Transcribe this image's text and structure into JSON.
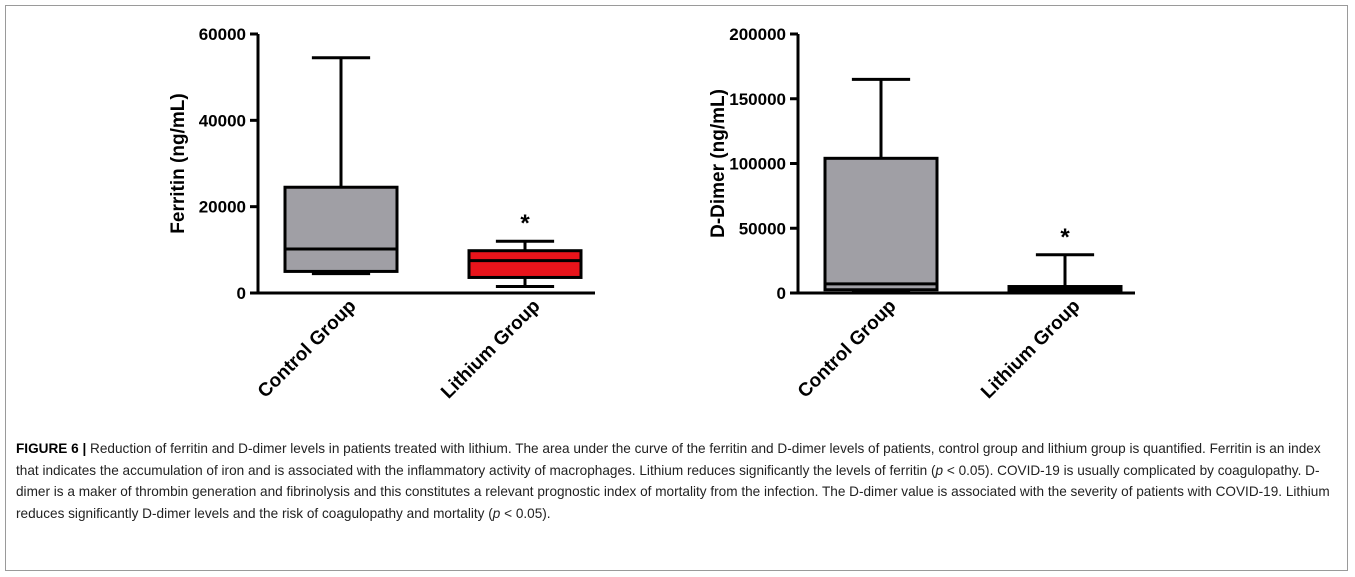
{
  "chart_data": [
    {
      "type": "box",
      "ylabel": "Ferritin (ng/mL)",
      "ylim": [
        0,
        60000
      ],
      "yticks": [
        0,
        20000,
        40000,
        60000
      ],
      "ytick_labels": [
        "0",
        "20000",
        "40000",
        "60000"
      ],
      "categories": [
        "Control Group",
        "Lithium Group"
      ],
      "boxes": [
        {
          "name": "Control Group",
          "min": 4500,
          "q1": 5000,
          "median": 10200,
          "q3": 24500,
          "max": 54500,
          "fill": "#a09fa5",
          "annotation": ""
        },
        {
          "name": "Lithium Group",
          "min": 1500,
          "q1": 3600,
          "median": 7500,
          "q3": 9800,
          "max": 12000,
          "fill": "#e8141b",
          "annotation": "*"
        }
      ]
    },
    {
      "type": "box",
      "ylabel": "D-Dimer (ng/mL)",
      "ylim": [
        0,
        200000
      ],
      "yticks": [
        0,
        50000,
        100000,
        150000,
        200000
      ],
      "ytick_labels": [
        "0",
        "50000",
        "100000",
        "150000",
        "200000"
      ],
      "categories": [
        "Control Group",
        "Lithium Group"
      ],
      "boxes": [
        {
          "name": "Control Group",
          "min": 2000,
          "q1": 2500,
          "median": 7000,
          "q3": 104000,
          "max": 165000,
          "fill": "#a09fa5",
          "annotation": ""
        },
        {
          "name": "Lithium Group",
          "min": 500,
          "q1": 1200,
          "median": 3000,
          "q3": 5000,
          "max": 29500,
          "fill": "#1a1a1a",
          "annotation": "*"
        }
      ]
    }
  ],
  "caption": {
    "lead": "FIGURE 6 |",
    "parts": [
      " Reduction of ferritin and D-dimer levels in patients treated with lithium. The area under the curve of the ferritin and D-dimer levels of patients, control group and lithium group is quantified. Ferritin is an index that indicates the accumulation of iron and is associated with the inflammatory activity of macrophages. Lithium reduces significantly the levels of ferritin (",
      "p",
      " < 0.05). COVID-19 is usually complicated by coagulopathy. D-dimer is a maker of thrombin generation and fibrinolysis and this constitutes a relevant prognostic index of mortality from the infection. The D-dimer value is associated with the severity of patients with COVID-19. Lithium reduces significantly D-dimer levels and the risk of coagulopathy and mortality (",
      "p",
      " < 0.05)."
    ]
  }
}
